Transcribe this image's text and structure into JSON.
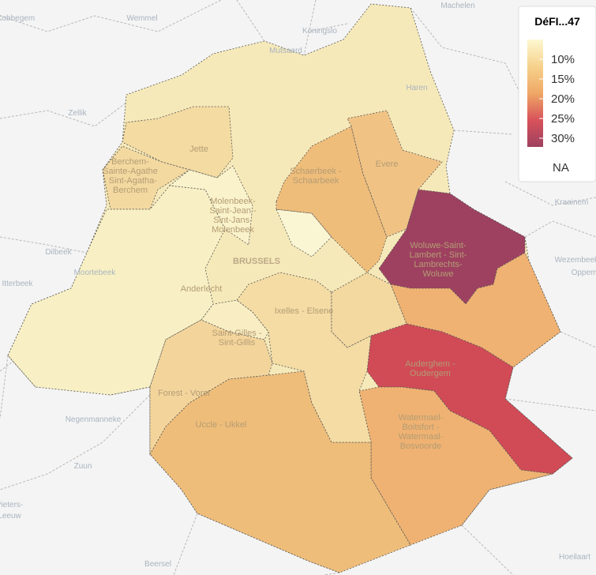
{
  "map": {
    "regions": [
      {
        "label": [
          "BRUSSELS"
        ],
        "color": "#f6e9b9"
      },
      {
        "label": [
          "Jette"
        ],
        "color": "#f3dba2"
      },
      {
        "label": [
          "Berchem-",
          "Sainte-Agathe",
          "- Sint-Agatha-",
          "Berchem"
        ],
        "color": "#f3d9a0"
      },
      {
        "label": [
          "Anderlecht"
        ],
        "color": "#f8f0c4"
      },
      {
        "label": [
          "Molenbeek-",
          "Saint-Jean -",
          "Sint-Jans-",
          "Molenbeek"
        ],
        "color": "#f9f2cb"
      },
      {
        "color": "#faf5d3"
      },
      {
        "label": [
          "Schaerbeek -",
          "Schaarbeek"
        ],
        "color": "#efbd7a"
      },
      {
        "label": [
          "Evere"
        ],
        "color": "#f0c385"
      },
      {
        "label": [
          "Woluwe-Saint-",
          "Lambert - Sint-",
          "Lambrechts-",
          "Woluwe"
        ],
        "color": "#9e4160"
      },
      {
        "color": "#efb272"
      },
      {
        "label": [
          "Auderghem -",
          "Oudergem"
        ],
        "color": "#d04b56"
      },
      {
        "label": [
          "Watermael-",
          "Boitsfort -",
          "Watermaal-",
          "Bosvoorde"
        ],
        "color": "#efb272"
      },
      {
        "label": [
          "Uccle - Ukkel"
        ],
        "color": "#efbd7a"
      },
      {
        "label": [
          "Forest - Vorst"
        ],
        "color": "#f3d59c"
      },
      {
        "label": [
          "Saint-Gilles -",
          "Sint-Gillis"
        ],
        "color": "#f8edc3"
      },
      {
        "label": [
          "Ixelles - Elsene"
        ],
        "color": "#f4dca4"
      },
      {
        "color": "#f3d8a0"
      }
    ],
    "places": [
      "Machelen",
      "Wemmel",
      "Koningslo",
      "Kobbegem",
      "Mutsaard",
      "Haren",
      "Zellik",
      "Dilbeek",
      "Moortebeek",
      "Itterbeek",
      "Kraainem",
      "Wezembeek-",
      "Oppem",
      "Negenmanneke",
      "Zuun",
      "Pieters-",
      "Leeuw",
      "Beersel",
      "Hoeilaart"
    ],
    "legend": {
      "title": "DéFI...47",
      "labels": [
        "10%",
        "15%",
        "20%",
        "25%",
        "30%"
      ],
      "na": "NA",
      "gradient": [
        "#fdf8d2",
        "#f6d28c",
        "#efa866",
        "#d8525a",
        "#9e4160"
      ]
    }
  }
}
